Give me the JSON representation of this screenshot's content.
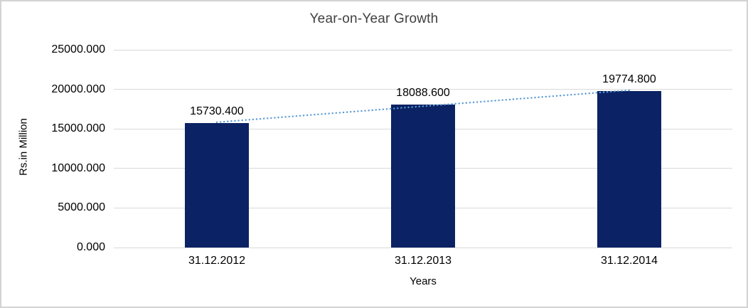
{
  "chart_data": {
    "type": "bar",
    "title": "Year-on-Year Growth",
    "xlabel": "Years",
    "ylabel": "Rs.in Million",
    "categories": [
      "31.12.2012",
      "31.12.2013",
      "31.12.2014"
    ],
    "values": [
      15730.4,
      18088.6,
      19774.8
    ],
    "value_labels": [
      "15730.400",
      "18088.600",
      "19774.800"
    ],
    "ylim": [
      0,
      25000
    ],
    "yticks": [
      {
        "value": 0,
        "label": "0.000"
      },
      {
        "value": 5000,
        "label": "5000.000"
      },
      {
        "value": 10000,
        "label": "10000.000"
      },
      {
        "value": 15000,
        "label": "15000.000"
      },
      {
        "value": 20000,
        "label": "20000.000"
      },
      {
        "value": 25000,
        "label": "25000.000"
      }
    ],
    "grid": true,
    "legend": "none",
    "trendline": {
      "type": "linear",
      "style": "dotted",
      "start_value": 15842.4,
      "end_value": 19886.8
    },
    "colors": {
      "bar": "#0B2264",
      "trendline": "#5B9BD5",
      "gridline": "#D9D9D9",
      "title_text": "#404040",
      "axis_text": "#000000",
      "frame_border": "#D3D3D3",
      "background": "#FFFFFF"
    }
  }
}
